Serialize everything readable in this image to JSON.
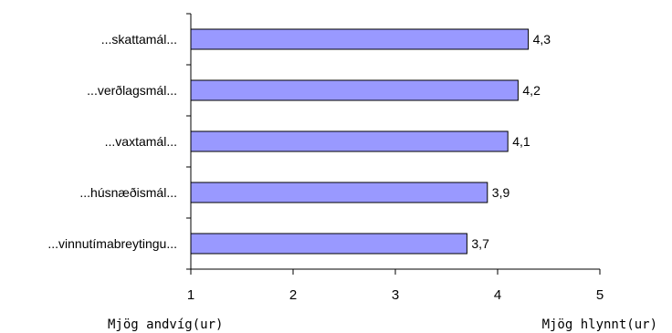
{
  "chart_data": {
    "type": "bar",
    "orientation": "horizontal",
    "categories": [
      "...skattamál...",
      "...verðlagsmál...",
      "...vaxtamál...",
      "...húsnæðismál...",
      "...vinnutímabreytingu..."
    ],
    "values": [
      4.3,
      4.2,
      4.1,
      3.9,
      3.7
    ],
    "value_labels": [
      "4,3",
      "4,2",
      "4,1",
      "3,9",
      "3,7"
    ],
    "xlim": [
      1,
      5
    ],
    "x_ticks": [
      1,
      2,
      3,
      4,
      5
    ],
    "x_tick_labels": [
      "1",
      "2",
      "3",
      "4",
      "5"
    ],
    "x_min_label": "Mjög andvíg(ur)",
    "x_max_label": "Mjög hlynnt(ur)",
    "grid": false,
    "bar_color": "#9999ff",
    "bar_edge_color": "#000000"
  }
}
